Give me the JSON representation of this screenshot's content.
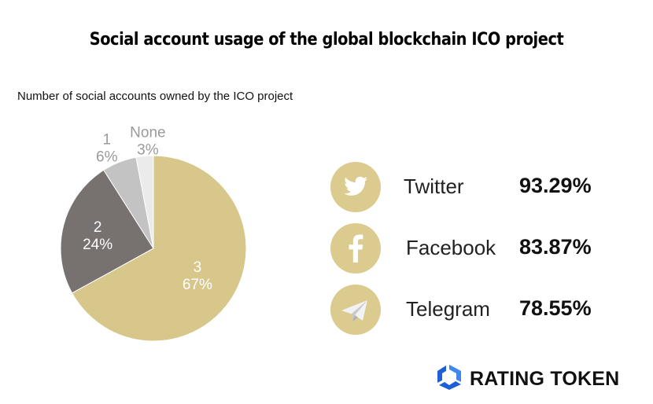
{
  "title": "Social account usage of the global blockchain ICO project",
  "chart_data": {
    "type": "pie",
    "subtitle": "Number of social accounts owned by the ICO project",
    "slices": [
      {
        "label": "3",
        "percent_label": "67%",
        "value": 67,
        "color": "#d8c78b",
        "text_color": "#ffffff"
      },
      {
        "label": "2",
        "percent_label": "24%",
        "value": 24,
        "color": "#777170",
        "text_color": "#ffffff"
      },
      {
        "label": "1",
        "percent_label": "6%",
        "value": 6,
        "color": "#c3c3c3",
        "text_color": "#9a9a9a"
      },
      {
        "label": "None",
        "percent_label": "3%",
        "value": 3,
        "color": "#ebebeb",
        "text_color": "#9a9a9a"
      }
    ]
  },
  "social": [
    {
      "icon": "twitter-icon",
      "name": "Twitter",
      "value": "93.29%"
    },
    {
      "icon": "facebook-icon",
      "name": "Facebook",
      "value": "83.87%"
    },
    {
      "icon": "telegram-icon",
      "name": "Telegram",
      "value": "78.55%"
    }
  ],
  "brand": {
    "name": "RATING TOKEN",
    "logo_color": "#1f5fd6"
  },
  "colors": {
    "icon_circle": "#dccb8f"
  }
}
